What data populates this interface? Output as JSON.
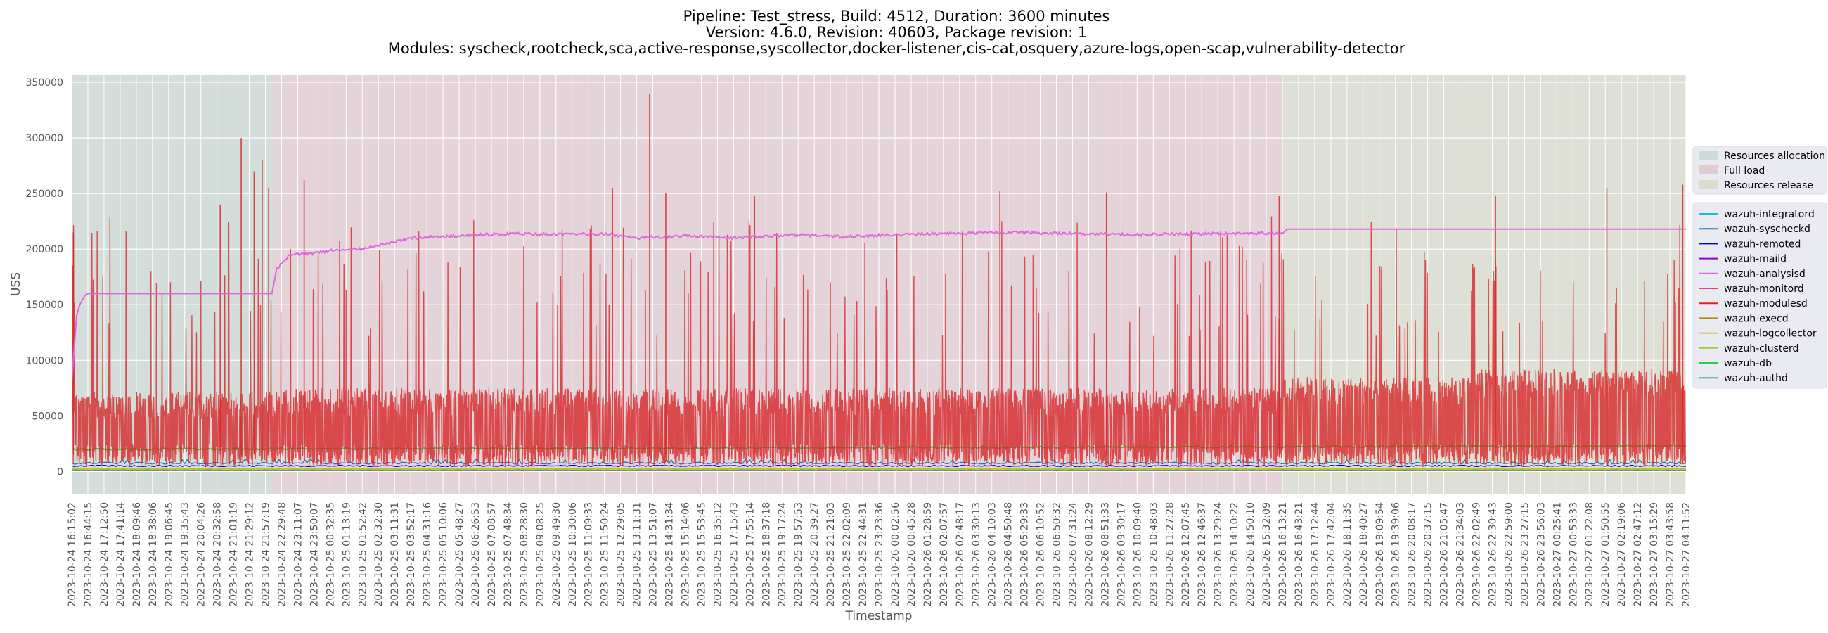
{
  "chart_data": {
    "type": "line",
    "title_lines": [
      "Pipeline: Test_stress, Build: 4512, Duration: 3600 minutes",
      "Version: 4.6.0, Revision: 40603, Package revision: 1",
      "Modules: syscheck,rootcheck,sca,active-response,syscollector,docker-listener,cis-cat,osquery,azure-logs,open-scap,vulnerability-detector"
    ],
    "xlabel": "Timestamp",
    "ylabel": "USS",
    "ylim": [
      -20000,
      357000
    ],
    "yticks": [
      0,
      50000,
      100000,
      150000,
      200000,
      250000,
      300000,
      350000
    ],
    "ytick_labels": [
      "0",
      "50000",
      "100000",
      "150000",
      "200000",
      "250000",
      "300000",
      "350000"
    ],
    "x_ticks": [
      "2023-10-24 16:15:02",
      "2023-10-24 16:44:15",
      "2023-10-24 17:12:50",
      "2023-10-24 17:41:14",
      "2023-10-24 18:09:46",
      "2023-10-24 18:38:06",
      "2023-10-24 19:06:45",
      "2023-10-24 19:35:43",
      "2023-10-24 20:04:26",
      "2023-10-24 20:32:58",
      "2023-10-24 21:01:19",
      "2023-10-24 21:29:12",
      "2023-10-24 21:57:19",
      "2023-10-24 22:29:48",
      "2023-10-24 23:11:07",
      "2023-10-24 23:50:07",
      "2023-10-25 00:32:35",
      "2023-10-25 01:13:19",
      "2023-10-25 01:52:42",
      "2023-10-25 02:32:30",
      "2023-10-25 03:11:31",
      "2023-10-25 03:52:17",
      "2023-10-25 04:31:16",
      "2023-10-25 05:10:06",
      "2023-10-25 05:48:27",
      "2023-10-25 06:26:53",
      "2023-10-25 07:08:57",
      "2023-10-25 07:48:34",
      "2023-10-25 08:28:30",
      "2023-10-25 09:08:25",
      "2023-10-25 09:49:30",
      "2023-10-25 10:30:06",
      "2023-10-25 11:09:33",
      "2023-10-25 11:50:24",
      "2023-10-25 12:29:05",
      "2023-10-25 13:11:31",
      "2023-10-25 13:51:07",
      "2023-10-25 14:31:34",
      "2023-10-25 15:14:06",
      "2023-10-25 15:53:45",
      "2023-10-25 16:35:12",
      "2023-10-25 17:15:43",
      "2023-10-25 17:55:14",
      "2023-10-25 18:37:18",
      "2023-10-25 19:17:24",
      "2023-10-25 19:57:53",
      "2023-10-25 20:39:27",
      "2023-10-25 21:21:03",
      "2023-10-25 22:02:09",
      "2023-10-25 22:44:31",
      "2023-10-25 23:23:36",
      "2023-10-26 00:02:56",
      "2023-10-26 00:45:28",
      "2023-10-26 01:28:59",
      "2023-10-26 02:07:57",
      "2023-10-26 02:48:17",
      "2023-10-26 03:30:13",
      "2023-10-26 04:10:03",
      "2023-10-26 04:50:48",
      "2023-10-26 05:29:33",
      "2023-10-26 06:10:52",
      "2023-10-26 06:50:32",
      "2023-10-26 07:31:24",
      "2023-10-26 08:12:29",
      "2023-10-26 08:51:33",
      "2023-10-26 09:30:17",
      "2023-10-26 10:09:40",
      "2023-10-26 10:48:03",
      "2023-10-26 11:27:28",
      "2023-10-26 12:07:45",
      "2023-10-26 12:46:37",
      "2023-10-26 13:29:24",
      "2023-10-26 14:10:22",
      "2023-10-26 14:50:10",
      "2023-10-26 15:32:09",
      "2023-10-26 16:13:21",
      "2023-10-26 16:43:21",
      "2023-10-26 17:12:44",
      "2023-10-26 17:42:04",
      "2023-10-26 18:11:35",
      "2023-10-26 18:40:27",
      "2023-10-26 19:09:54",
      "2023-10-26 19:39:06",
      "2023-10-26 20:08:17",
      "2023-10-26 20:37:15",
      "2023-10-26 21:05:47",
      "2023-10-26 21:34:03",
      "2023-10-26 22:02:49",
      "2023-10-26 22:30:43",
      "2023-10-26 22:59:00",
      "2023-10-26 23:27:15",
      "2023-10-26 23:56:03",
      "2023-10-27 00:25:41",
      "2023-10-27 00:53:33",
      "2023-10-27 01:22:08",
      "2023-10-27 01:50:55",
      "2023-10-27 02:19:06",
      "2023-10-27 02:47:12",
      "2023-10-27 03:15:29",
      "2023-10-27 03:43:58",
      "2023-10-27 04:11:52"
    ],
    "phases": [
      {
        "name": "Resources allocation",
        "start_index": 0,
        "end_index": 12.5,
        "color": "#a9c9b0"
      },
      {
        "name": "Full load",
        "start_index": 12.5,
        "end_index": 75,
        "color": "#d9a8ab"
      },
      {
        "name": "Resources release",
        "start_index": 75,
        "end_index": 100,
        "color": "#c9cda1"
      }
    ],
    "legend_placement": "right",
    "grid": true,
    "series": [
      {
        "name": "wazuh-integratord",
        "color": "#17becf",
        "level": 1500
      },
      {
        "name": "wazuh-syscheckd",
        "color": "#1f77b4",
        "level": 7500
      },
      {
        "name": "wazuh-remoted",
        "color": "#0000cc",
        "level": 5000
      },
      {
        "name": "wazuh-maild",
        "color": "#9400d3",
        "level": 1000
      },
      {
        "name": "wazuh-analysisd",
        "color": "#e066e0",
        "level": 210000
      },
      {
        "name": "wazuh-monitord",
        "color": "#e0457b",
        "level": 1200
      },
      {
        "name": "wazuh-modulesd",
        "color": "#d62728",
        "level": 65000
      },
      {
        "name": "wazuh-execd",
        "color": "#b8860b",
        "level": 900
      },
      {
        "name": "wazuh-logcollector",
        "color": "#d4c23a",
        "level": 2000
      },
      {
        "name": "wazuh-clusterd",
        "color": "#9acd32",
        "level": 2500
      },
      {
        "name": "wazuh-db",
        "color": "#2ecc40",
        "level": 20000
      },
      {
        "name": "wazuh-authd",
        "color": "#3cb371",
        "level": 800
      }
    ],
    "analysisd_profile": [
      {
        "x": 0,
        "y": 80000
      },
      {
        "x": 0.3,
        "y": 140000
      },
      {
        "x": 0.5,
        "y": 150000
      },
      {
        "x": 0.8,
        "y": 158000
      },
      {
        "x": 1.0,
        "y": 160000
      },
      {
        "x": 12.4,
        "y": 160000
      },
      {
        "x": 12.7,
        "y": 182000
      },
      {
        "x": 13.5,
        "y": 195000
      },
      {
        "x": 15,
        "y": 196000
      },
      {
        "x": 16.5,
        "y": 200000
      },
      {
        "x": 18,
        "y": 200000
      },
      {
        "x": 19.5,
        "y": 205000
      },
      {
        "x": 21,
        "y": 210000
      },
      {
        "x": 24,
        "y": 212000
      },
      {
        "x": 27,
        "y": 214000
      },
      {
        "x": 30,
        "y": 213000
      },
      {
        "x": 33,
        "y": 214000
      },
      {
        "x": 35,
        "y": 210000
      },
      {
        "x": 38,
        "y": 212000
      },
      {
        "x": 41,
        "y": 210000
      },
      {
        "x": 45,
        "y": 213000
      },
      {
        "x": 48,
        "y": 211000
      },
      {
        "x": 51,
        "y": 213000
      },
      {
        "x": 54,
        "y": 214000
      },
      {
        "x": 58,
        "y": 215000
      },
      {
        "x": 62,
        "y": 214000
      },
      {
        "x": 66,
        "y": 213000
      },
      {
        "x": 70,
        "y": 214000
      },
      {
        "x": 75,
        "y": 214000
      },
      {
        "x": 75.3,
        "y": 218000
      },
      {
        "x": 100,
        "y": 218000
      }
    ],
    "modulesd_peaks": [
      {
        "x": 35.8,
        "y": 340000
      },
      {
        "x": 10.5,
        "y": 300000
      },
      {
        "x": 11.8,
        "y": 280000
      },
      {
        "x": 12.2,
        "y": 255000
      },
      {
        "x": 14.4,
        "y": 262000
      },
      {
        "x": 11.3,
        "y": 270000
      },
      {
        "x": 9.2,
        "y": 240000
      },
      {
        "x": 33.5,
        "y": 255000
      },
      {
        "x": 36.8,
        "y": 250000
      },
      {
        "x": 42.3,
        "y": 248000
      },
      {
        "x": 57.5,
        "y": 252000
      },
      {
        "x": 64.1,
        "y": 251000
      },
      {
        "x": 74.8,
        "y": 248000
      },
      {
        "x": 88.2,
        "y": 248000
      },
      {
        "x": 95.1,
        "y": 255000
      },
      {
        "x": 99.8,
        "y": 258000
      },
      {
        "x": 0.1,
        "y": 215000
      }
    ]
  }
}
